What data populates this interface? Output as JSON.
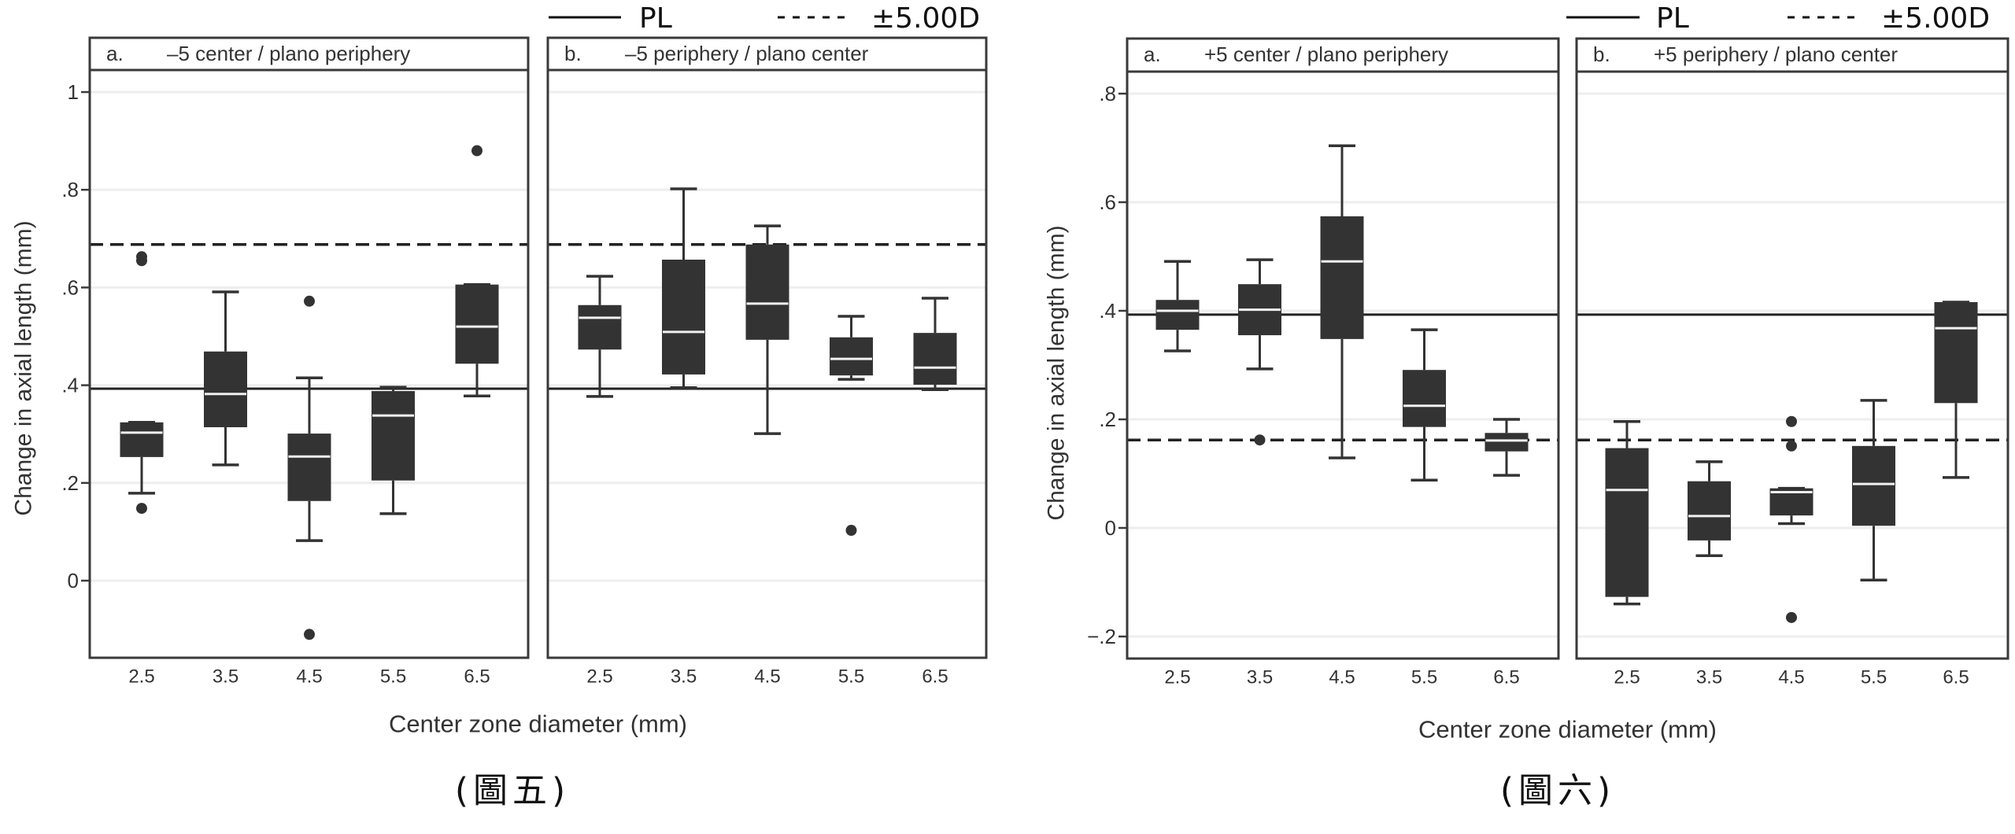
{
  "chart_data": [
    {
      "type": "box",
      "figure_caption": "(圖五)",
      "ylabel": "Change in axial length (mm)",
      "xlabel": "Center zone diameter (mm)",
      "ylim": [
        -0.135,
        1.09
      ],
      "yticks": [
        0,
        0.2,
        0.4,
        0.6,
        0.8,
        1
      ],
      "ytick_labels": [
        "0",
        ".2",
        ".4",
        ".6",
        ".8",
        "1"
      ],
      "categories": [
        "2.5",
        "3.5",
        "4.5",
        "5.5",
        "6.5"
      ],
      "legend": [
        {
          "label": "PL",
          "style": "solid"
        },
        {
          "label": "±5.00D",
          "style": "dashed"
        }
      ],
      "reference_lines": {
        "PL": 0.393,
        "±5.00D": 0.688
      },
      "panels": [
        {
          "letter": "a.",
          "title": "–5 center / plano periphery",
          "boxes": [
            {
              "x": "2.5",
              "lower_whisker": 0.179,
              "q1": 0.253,
              "median": 0.303,
              "q3": 0.324,
              "upper_whisker": 0.324,
              "outliers": [
                0.148,
                0.655,
                0.663
              ]
            },
            {
              "x": "3.5",
              "lower_whisker": 0.237,
              "q1": 0.314,
              "median": 0.382,
              "q3": 0.469,
              "upper_whisker": 0.591,
              "outliers": []
            },
            {
              "x": "4.5",
              "lower_whisker": 0.082,
              "q1": 0.163,
              "median": 0.254,
              "q3": 0.301,
              "upper_whisker": 0.415,
              "outliers": [
                0.572,
                -0.11
              ]
            },
            {
              "x": "5.5",
              "lower_whisker": 0.137,
              "q1": 0.205,
              "median": 0.338,
              "q3": 0.388,
              "upper_whisker": 0.396,
              "outliers": []
            },
            {
              "x": "6.5",
              "lower_whisker": 0.378,
              "q1": 0.444,
              "median": 0.52,
              "q3": 0.606,
              "upper_whisker": 0.606,
              "outliers": [
                0.88
              ]
            }
          ]
        },
        {
          "letter": "b.",
          "title": "–5 periphery / plano center",
          "boxes": [
            {
              "x": "2.5",
              "lower_whisker": 0.377,
              "q1": 0.473,
              "median": 0.538,
              "q3": 0.564,
              "upper_whisker": 0.623,
              "outliers": []
            },
            {
              "x": "3.5",
              "lower_whisker": 0.395,
              "q1": 0.422,
              "median": 0.509,
              "q3": 0.657,
              "upper_whisker": 0.802,
              "outliers": []
            },
            {
              "x": "4.5",
              "lower_whisker": 0.301,
              "q1": 0.493,
              "median": 0.567,
              "q3": 0.688,
              "upper_whisker": 0.726,
              "outliers": []
            },
            {
              "x": "5.5",
              "lower_whisker": 0.412,
              "q1": 0.42,
              "median": 0.454,
              "q3": 0.498,
              "upper_whisker": 0.541,
              "outliers": [
                0.103
              ]
            },
            {
              "x": "6.5",
              "lower_whisker": 0.391,
              "q1": 0.401,
              "median": 0.436,
              "q3": 0.507,
              "upper_whisker": 0.578,
              "outliers": []
            }
          ]
        }
      ]
    },
    {
      "type": "box",
      "figure_caption": "(圖六)",
      "ylabel": "Change in axial length (mm)",
      "xlabel": "Center zone diameter (mm)",
      "ylim": [
        -0.24,
        0.84
      ],
      "yticks": [
        -0.2,
        0,
        0.2,
        0.4,
        0.6,
        0.8
      ],
      "ytick_labels": [
        "−.2",
        "0",
        ".2",
        ".4",
        ".6",
        ".8"
      ],
      "categories": [
        "2.5",
        "3.5",
        "4.5",
        "5.5",
        "6.5"
      ],
      "legend": [
        {
          "label": "PL",
          "style": "solid"
        },
        {
          "label": "±5.00D",
          "style": "dashed"
        }
      ],
      "reference_lines": {
        "PL": 0.393,
        "±5.00D": 0.162
      },
      "panels": [
        {
          "letter": "a.",
          "title": "+5 center / plano periphery",
          "boxes": [
            {
              "x": "2.5",
              "lower_whisker": 0.326,
              "q1": 0.365,
              "median": 0.4,
              "q3": 0.42,
              "upper_whisker": 0.491,
              "outliers": []
            },
            {
              "x": "3.5",
              "lower_whisker": 0.293,
              "q1": 0.355,
              "median": 0.402,
              "q3": 0.449,
              "upper_whisker": 0.494,
              "outliers": [
                0.162
              ]
            },
            {
              "x": "4.5",
              "lower_whisker": 0.129,
              "q1": 0.348,
              "median": 0.491,
              "q3": 0.574,
              "upper_whisker": 0.704,
              "outliers": []
            },
            {
              "x": "5.5",
              "lower_whisker": 0.088,
              "q1": 0.186,
              "median": 0.225,
              "q3": 0.291,
              "upper_whisker": 0.365,
              "outliers": []
            },
            {
              "x": "6.5",
              "lower_whisker": 0.097,
              "q1": 0.141,
              "median": 0.161,
              "q3": 0.175,
              "upper_whisker": 0.2,
              "outliers": []
            }
          ]
        },
        {
          "letter": "b.",
          "title": "+5 periphery / plano center",
          "boxes": [
            {
              "x": "2.5",
              "lower_whisker": -0.14,
              "q1": -0.127,
              "median": 0.07,
              "q3": 0.147,
              "upper_whisker": 0.196,
              "outliers": []
            },
            {
              "x": "3.5",
              "lower_whisker": -0.051,
              "q1": -0.023,
              "median": 0.022,
              "q3": 0.086,
              "upper_whisker": 0.122,
              "outliers": []
            },
            {
              "x": "4.5",
              "lower_whisker": 0.008,
              "q1": 0.023,
              "median": 0.066,
              "q3": 0.073,
              "upper_whisker": 0.073,
              "outliers": [
                0.196,
                0.151,
                -0.165
              ]
            },
            {
              "x": "5.5",
              "lower_whisker": -0.096,
              "q1": 0.004,
              "median": 0.081,
              "q3": 0.151,
              "upper_whisker": 0.235,
              "outliers": []
            },
            {
              "x": "6.5",
              "lower_whisker": 0.093,
              "q1": 0.23,
              "median": 0.368,
              "q3": 0.416,
              "upper_whisker": 0.416,
              "outliers": []
            }
          ]
        }
      ]
    }
  ],
  "colors": {
    "box_fill": "#333333",
    "median_line": "#f2f2f2",
    "frame": "#3a3a3a",
    "gridline": "#eeeeee",
    "reference_line": "#222222",
    "text": "#333333"
  }
}
